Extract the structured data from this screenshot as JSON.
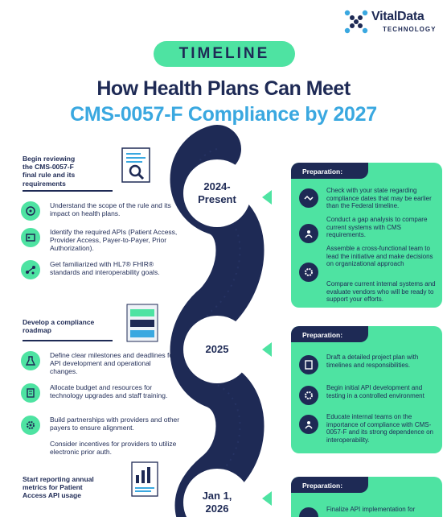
{
  "brand": {
    "name_part1": "Vital",
    "name_part2": "Data",
    "tagline": "TECHNOLOGY"
  },
  "header": {
    "pill": "TIMELINE",
    "title_line1": "How Health Plans Can Meet",
    "title_line2": "CMS-0057-F Compliance by 2027"
  },
  "colors": {
    "navy": "#1e2a55",
    "green": "#4ee3a2",
    "blue": "#3aa8e0"
  },
  "timeline": [
    {
      "node": "2024-\nPresent",
      "heading": "Begin reviewing the CMS-0057-F final rule and its requirements",
      "items": [
        {
          "icon": "brain-icon",
          "text": "Understand the scope of the rule and its impact on health plans."
        },
        {
          "icon": "id-card-icon",
          "text": "Identify the required APIs (Patient Access, Provider Access, Payer-to-Payer, Prior Authorization)."
        },
        {
          "icon": "network-icon",
          "text": "Get familiarized with HL7® FHIR® standards and interoperability goals."
        }
      ],
      "panel": {
        "heading": "Preparation:",
        "items": [
          {
            "icon": "handshake-icon",
            "text": "Check with your state regarding compliance dates that may be earlier than the Federal timeline."
          },
          {
            "icon": "team-icon",
            "text": "Conduct a gap analysis to compare current systems with CMS requirements."
          },
          {
            "icon": "gear-icon",
            "text": "Assemble a cross-functional team to lead the initiative and make decisions on organizational approach"
          },
          {
            "icon": "gear-icon",
            "text": "Compare current internal systems and evaluate vendors who will be ready to support your efforts."
          }
        ]
      }
    },
    {
      "node": "2025",
      "heading": "Develop a compliance roadmap",
      "items": [
        {
          "icon": "flask-icon",
          "text": "Define clear milestones and deadlines for API development and operational changes."
        },
        {
          "icon": "checklist-icon",
          "text": "Allocate budget and resources for technology upgrades and staff training."
        },
        {
          "icon": "gear-icon",
          "text": "Build partnerships with providers and other payers to ensure alignment."
        },
        {
          "icon": "gear-icon",
          "text": "Consider incentives for providers to utilize electronic prior auth."
        }
      ],
      "panel": {
        "heading": "Preparation:",
        "items": [
          {
            "icon": "plan-icon",
            "text": "Draft a detailed project plan with timelines and responsibilities."
          },
          {
            "icon": "gear-icon",
            "text": "Begin initial API development and testing in a controlled environment"
          },
          {
            "icon": "team-icon",
            "text": "Educate internal teams on the importance of compliance with CMS-0057-F and its strong dependence on interoperability."
          }
        ]
      }
    },
    {
      "node": "Jan 1,\n2026",
      "heading": "Start reporting annual metrics for Patient Access API usage",
      "panel": {
        "heading": "Preparation:",
        "items": [
          {
            "icon": "plan-icon",
            "text": "Finalize API implementation for"
          }
        ]
      }
    }
  ]
}
